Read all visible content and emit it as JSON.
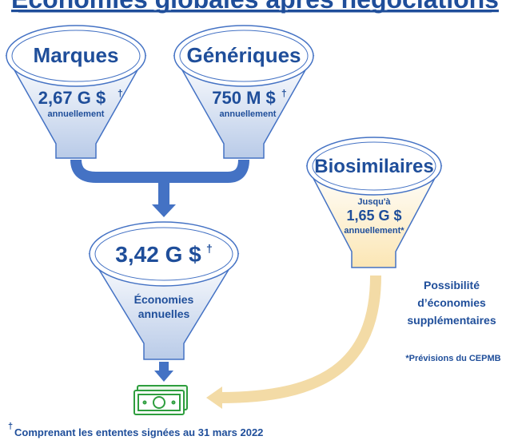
{
  "title": "Économies globales après négociations",
  "funnels": [
    {
      "label": "Marques",
      "amount": "2,67 G $",
      "mark": "†",
      "note": "annuellement"
    },
    {
      "label": "Génériques",
      "amount": "750 M $",
      "mark": "†",
      "note": "annuellement"
    },
    {
      "label": "Biosimilaires",
      "prefix": "Jusqu'à",
      "amount": "1,65 G $",
      "note": "annuellement*"
    },
    {
      "amount": "3,42 G $",
      "mark": "†",
      "note_lines": [
        "Économies",
        "annuelles"
      ]
    }
  ],
  "potential_lines": [
    "Possibilité",
    "d’économies",
    "supplémentaires"
  ],
  "forecast_note": "*Prévisions du CEPMB",
  "footnote": {
    "mark": "†",
    "text": "Comprenant les ententes signées au 31 mars 2022"
  }
}
